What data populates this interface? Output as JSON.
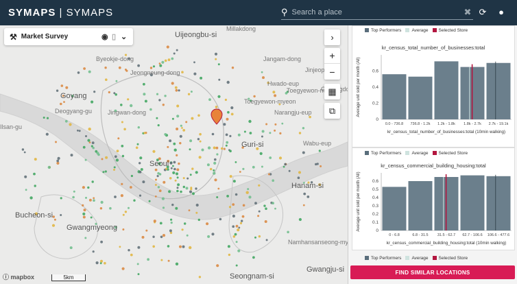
{
  "header": {
    "brand": "SYMAPS",
    "brand_sub": "SYMAPS",
    "search_placeholder": "Search a place"
  },
  "survey": {
    "label": "Market Survey"
  },
  "map": {
    "places": [
      {
        "name": "Uijeongbu-si",
        "big": true
      },
      {
        "name": "Millakdong"
      },
      {
        "name": "Jangam-dong"
      },
      {
        "name": "Byeokje-dong"
      },
      {
        "name": "Jeongneung-dong"
      },
      {
        "name": "Toegyewon-myeon"
      },
      {
        "name": "Goyang",
        "big": true
      },
      {
        "name": "Deogyang-gu"
      },
      {
        "name": "Jingwan-dong"
      },
      {
        "name": "Narangju-eup"
      },
      {
        "name": "Ilsan-gu"
      },
      {
        "name": "Guri-si",
        "big": true
      },
      {
        "name": "Wabu-eup"
      },
      {
        "name": "Seoul",
        "big": true
      },
      {
        "name": "Hanam-si",
        "big": true
      },
      {
        "name": "Bucheon-si",
        "big": true
      },
      {
        "name": "Gwangmyeong",
        "big": true
      },
      {
        "name": "Namhansanseong-myeon"
      },
      {
        "name": "Seongnam-si",
        "big": true
      },
      {
        "name": "Gwangju-si",
        "big": true
      },
      {
        "name": "Cheongdo-myeon"
      },
      {
        "name": "Toegyewon-myeon"
      },
      {
        "name": "Jinjeop-eup"
      },
      {
        "name": "Hwado-eup"
      }
    ],
    "attribution": "mapbox",
    "scale": "5km"
  },
  "charts": [
    {
      "legend": [
        "Top Performers",
        "Average",
        "Selected Store"
      ],
      "chart_data": {
        "type": "bar",
        "title": "kr_census_total_number_of_businesses:total",
        "categories": [
          "0.0 - 736.8",
          "736.8 - 1.2k",
          "1.2k - 1.8k",
          "1.8k - 2.7k",
          "2.7k - 19.1k"
        ],
        "values": [
          0.56,
          0.53,
          0.72,
          0.65,
          0.7
        ],
        "yticks": [
          "0",
          "0.2",
          "0.4",
          "0.6"
        ],
        "ylim": [
          0,
          0.8
        ],
        "xlabel": "kr_census_total_number_of_businesses:total (10min walking)",
        "ylabel": "Average unit sold per month (All)",
        "selected_index": 3
      }
    },
    {
      "legend": [
        "Top Performers",
        "Average",
        "Selected Store"
      ],
      "chart_data": {
        "type": "bar",
        "title": "kr_census_commercial_building_housing:total",
        "categories": [
          "0 - 6.8",
          "6.8 - 31.5",
          "31.5 - 62.7",
          "62.7 - 106.6",
          "106.6 - 477.6"
        ],
        "values": [
          0.53,
          0.6,
          0.65,
          0.67,
          0.66
        ],
        "yticks": [
          "0",
          "0.1",
          "0.2",
          "0.3",
          "0.4",
          "0.5",
          "0.6"
        ],
        "ylim": [
          0,
          0.7
        ],
        "xlabel": "kr_census_commercial_building_housing:total (10min walking)",
        "ylabel": "Average unit sold per month (All)",
        "selected_index": 2
      }
    }
  ],
  "colors": {
    "bar": "#6b7f8c",
    "selected": "#b3163f",
    "average": "#cfe3df",
    "top": "#5a6e7c",
    "accent": "#d81b55",
    "header": "#1f3445"
  },
  "find_button": "FIND SIMILAR LOCATIONS"
}
